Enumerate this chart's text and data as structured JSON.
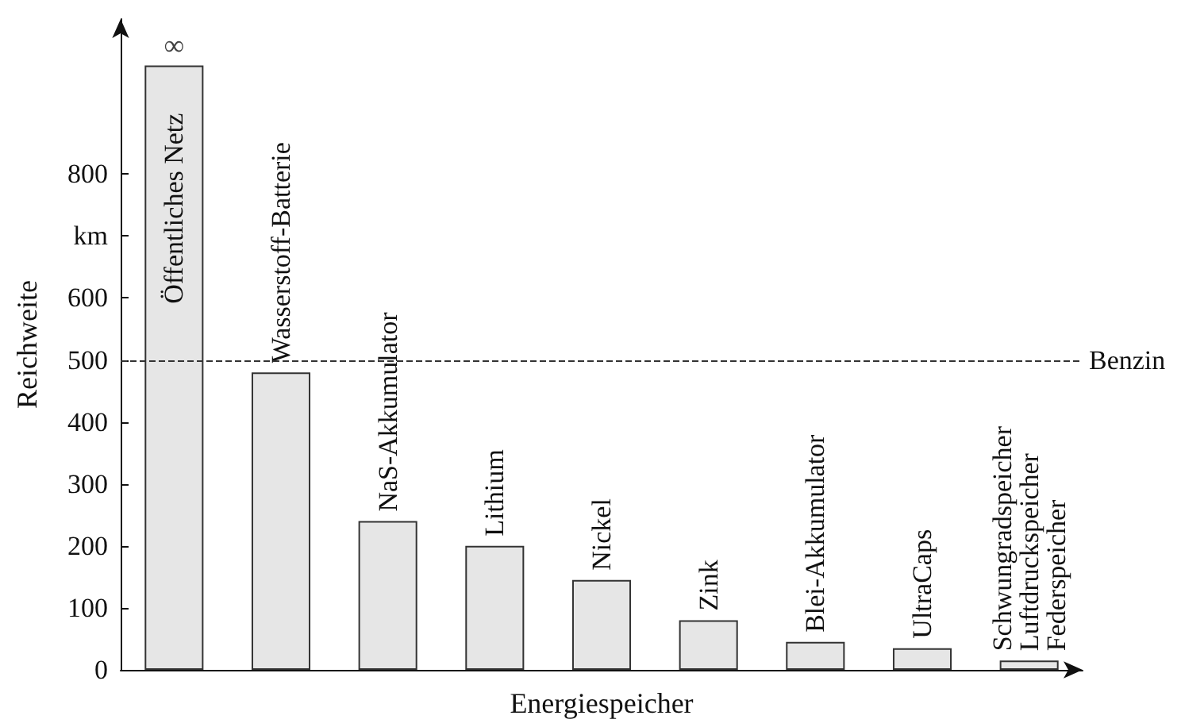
{
  "chart_data": {
    "type": "bar",
    "xlabel": "Energiespeicher",
    "ylabel": "Reichweite",
    "categories": [
      "Öffentliches Netz",
      "Wasserstoff-Batterie",
      "NaS-Akkumulator",
      "Lithium",
      "Nickel",
      "Zink",
      "Blei-Akkumulator",
      "UltraCaps",
      "Schwungradspeicher\nLuftdruckspeicher\nFederspeicher"
    ],
    "values": [
      975,
      480,
      240,
      200,
      145,
      80,
      45,
      35,
      15
    ],
    "value_labels": [
      "∞",
      null,
      null,
      null,
      null,
      null,
      null,
      null,
      null
    ],
    "color": "#e6e6e6",
    "ylim": [
      0,
      1050
    ],
    "yticks": [
      0,
      100,
      200,
      300,
      400,
      500,
      600,
      {
        "value": 700,
        "label": "km"
      },
      800
    ],
    "ref_lines": [
      {
        "axis": "y",
        "value": 500,
        "label": "Benzin",
        "line_style": "dashed",
        "color": "#333333"
      }
    ],
    "grid": false,
    "tick_labels": "y"
  }
}
